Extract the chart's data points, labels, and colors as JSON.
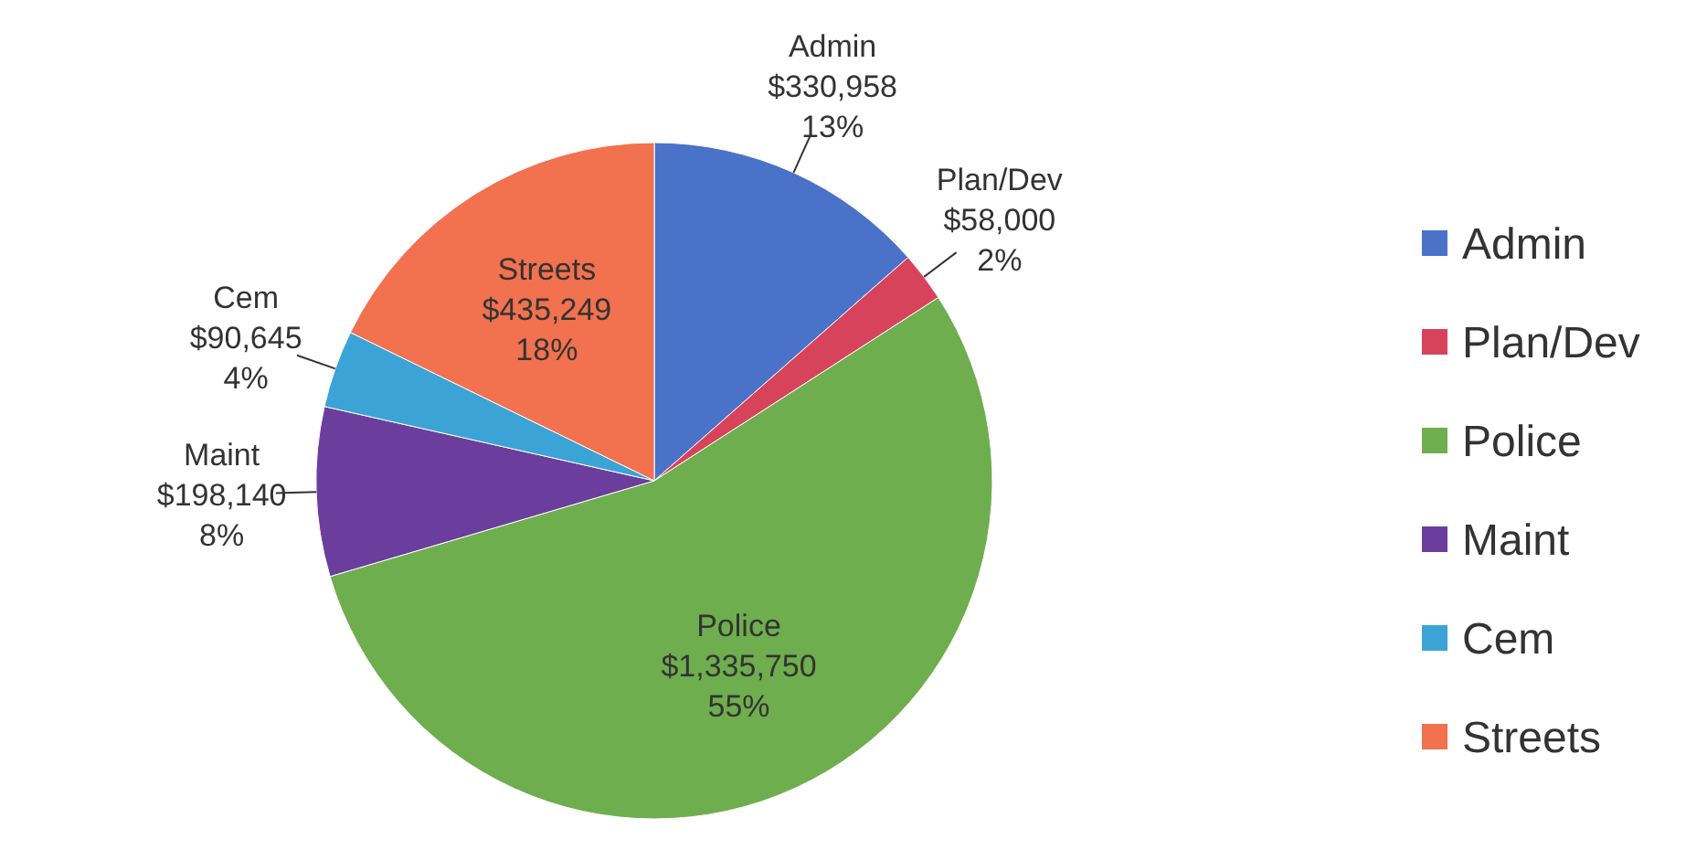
{
  "chart_data": {
    "type": "pie",
    "categories": [
      "Admin",
      "Plan/Dev",
      "Police",
      "Maint",
      "Cem",
      "Streets"
    ],
    "values": [
      330958,
      58000,
      1335750,
      198140,
      90645,
      435249
    ],
    "value_labels": [
      "$330,958\n13%",
      "$58,000\n2%",
      "$1,335,750\n55%",
      "$198,140\n8%",
      "$90,645\n4%",
      "$435,249\n18%"
    ],
    "colors": [
      "#4a72c8",
      "#d8435c",
      "#6fae4e",
      "#6b3e9e",
      "#3ba3d6",
      "#f2714f"
    ],
    "legend": "right"
  }
}
